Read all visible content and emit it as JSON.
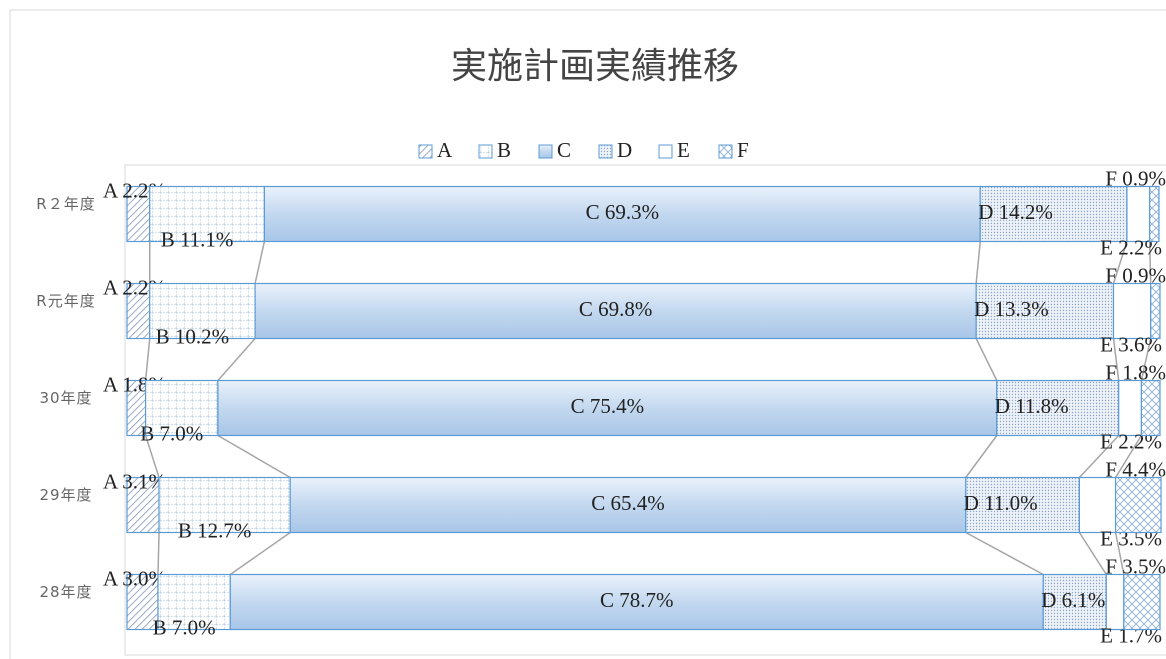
{
  "chart_data": {
    "type": "stacked-bar-horizontal",
    "title": "実施計画実績推移",
    "categories": [
      "R２年度",
      "R元年度",
      "30年度",
      "29年度",
      "28年度"
    ],
    "xlim": [
      0,
      100
    ],
    "color": "#5b9bd5",
    "legend": "top",
    "series": [
      {
        "name": "A",
        "values": [
          2.2,
          2.2,
          1.8,
          3.1,
          3.0
        ],
        "value_labels": [
          "A 2.2%",
          "A 2.2%",
          "A 1.8%",
          "A 3.1%",
          "A 3.0%"
        ]
      },
      {
        "name": "B",
        "values": [
          11.1,
          10.2,
          7.0,
          12.7,
          7.0
        ],
        "value_labels": [
          "B 11.1%",
          "B 10.2%",
          "B 7.0%",
          "B 12.7%",
          "B 7.0%"
        ]
      },
      {
        "name": "C",
        "values": [
          69.3,
          69.8,
          75.4,
          65.4,
          78.7
        ],
        "value_labels": [
          "C 69.3%",
          "C 69.8%",
          "C 75.4%",
          "C 65.4%",
          "C 78.7%"
        ]
      },
      {
        "name": "D",
        "values": [
          14.2,
          13.3,
          11.8,
          11.0,
          6.1
        ],
        "value_labels": [
          "D 14.2%",
          "D 13.3%",
          "D 11.8%",
          "D 11.0%",
          "D 6.1%"
        ]
      },
      {
        "name": "E",
        "values": [
          2.2,
          3.6,
          2.2,
          3.5,
          1.7
        ],
        "value_labels": [
          "E 2.2%",
          "E 3.6%",
          "E 2.2%",
          "E 3.5%",
          "E 1.7%"
        ]
      },
      {
        "name": "F",
        "values": [
          0.9,
          0.9,
          1.8,
          4.4,
          3.5
        ],
        "value_labels": [
          "F 0.9%",
          "F 0.9%",
          "F 1.8%",
          "F 4.4%",
          "F 3.5%"
        ]
      }
    ]
  }
}
